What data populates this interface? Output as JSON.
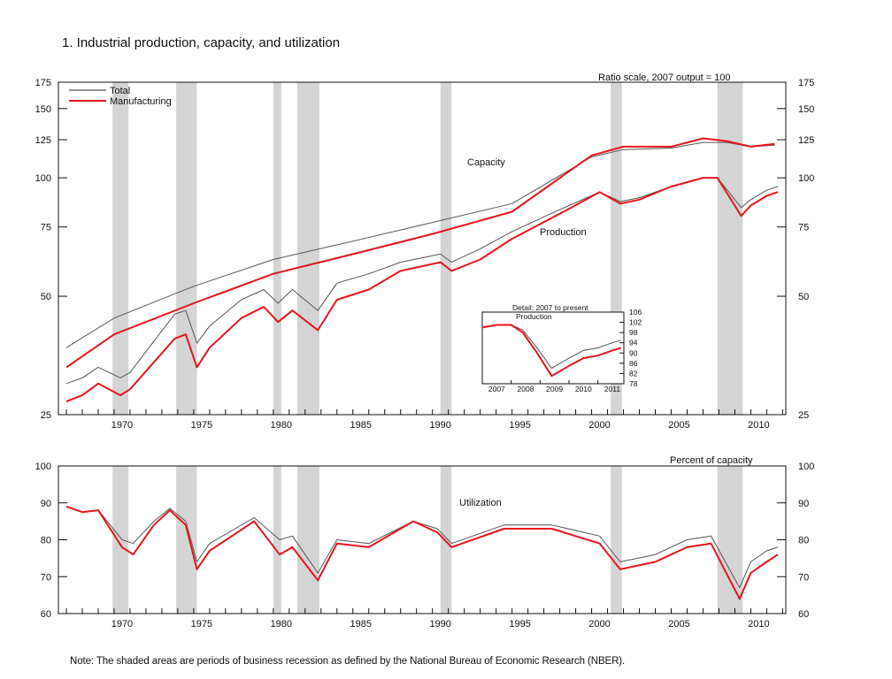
{
  "figure": {
    "title": "1.  Industrial production, capacity, and utilization",
    "note": "Note: The shaded areas are periods of business recession as defined by the National Bureau of Economic Research (NBER)."
  },
  "colors": {
    "total": "#555555",
    "manufacturing": "#e8141c",
    "recession": "#d4d4d4"
  },
  "chart_data": [
    {
      "type": "line",
      "subtitle": "Ratio scale, 2007 output = 100",
      "yscale": "log",
      "ylim": [
        25,
        175
      ],
      "xlim": [
        1966.5,
        2012.2
      ],
      "yticks": [
        25,
        50,
        75,
        100,
        125,
        150,
        175
      ],
      "xticks": [
        1970,
        1975,
        1980,
        1985,
        1990,
        1995,
        2000,
        2005,
        2010
      ],
      "recessions": [
        [
          1969.9,
          1970.9
        ],
        [
          1973.9,
          1975.2
        ],
        [
          1980.0,
          1980.5
        ],
        [
          1981.5,
          1982.9
        ],
        [
          1990.5,
          1991.2
        ],
        [
          2001.2,
          2001.9
        ],
        [
          2007.9,
          2009.5
        ]
      ],
      "legend": {
        "placement": "top-left",
        "entries": [
          "Total",
          "Manufacturing"
        ]
      },
      "annotations": [
        "Capacity",
        "Production"
      ],
      "series": [
        {
          "name": "Total",
          "measure": "Capacity",
          "x": [
            1967,
            1970,
            1975,
            1980,
            1985,
            1990,
            1995,
            2000,
            2002,
            2005,
            2007,
            2008.5,
            2010,
            2011.5
          ],
          "values": [
            37,
            44,
            53,
            62,
            69,
            77,
            86,
            113,
            118,
            119,
            123,
            123,
            120,
            121
          ]
        },
        {
          "name": "Manufacturing",
          "measure": "Capacity",
          "x": [
            1967,
            1970,
            1975,
            1980,
            1985,
            1990,
            1995,
            2000,
            2002,
            2005,
            2007,
            2008.5,
            2010,
            2011.5
          ],
          "values": [
            33,
            40,
            48,
            57,
            64,
            72,
            82,
            114,
            120,
            120,
            126,
            124,
            120,
            122
          ]
        },
        {
          "name": "Total",
          "measure": "Production",
          "x": [
            1967,
            1968,
            1969,
            1970.4,
            1971,
            1973.8,
            1974.5,
            1975.2,
            1976,
            1978,
            1979.4,
            1980.3,
            1981.2,
            1982.8,
            1984,
            1986,
            1988,
            1990.5,
            1991.2,
            1993,
            1995,
            1998,
            2000.5,
            2001.8,
            2003,
            2005,
            2007,
            2007.9,
            2009.4,
            2010,
            2011,
            2011.7
          ],
          "values": [
            30,
            31,
            33,
            31,
            32,
            45,
            46,
            38,
            42,
            49,
            52,
            48,
            52,
            46,
            54,
            57,
            61,
            64,
            61,
            66,
            73,
            83,
            92,
            87,
            89,
            95,
            100,
            100,
            84,
            88,
            93,
            95
          ]
        },
        {
          "name": "Manufacturing",
          "measure": "Production",
          "x": [
            1967,
            1968,
            1969,
            1970.4,
            1971,
            1973.8,
            1974.5,
            1975.2,
            1976,
            1978,
            1979.4,
            1980.3,
            1981.2,
            1982.8,
            1984,
            1986,
            1988,
            1990.5,
            1991.2,
            1993,
            1995,
            1998,
            2000.5,
            2001.8,
            2003,
            2005,
            2007,
            2007.9,
            2009.4,
            2010,
            2011,
            2011.7
          ],
          "values": [
            27,
            28,
            30,
            28,
            29,
            39,
            40,
            33,
            37,
            44,
            47,
            43,
            46,
            41,
            49,
            52,
            58,
            61,
            58,
            62,
            70,
            81,
            92,
            86,
            88,
            95,
            100,
            100,
            80,
            85,
            90,
            92
          ]
        }
      ],
      "inset": {
        "title": "Detail: 2007 to present",
        "annotation": "Production",
        "ylim": [
          78,
          106
        ],
        "yticks": [
          78,
          82,
          86,
          90,
          94,
          98,
          102,
          106
        ],
        "xticks": [
          "2007",
          "2008",
          "2009",
          "2010",
          "2011"
        ],
        "xlim": [
          2007,
          2011.9
        ],
        "series": [
          {
            "name": "Total",
            "x": [
              2007,
              2007.5,
              2008,
              2008.4,
              2008.9,
              2009.4,
              2010,
              2010.5,
              2011,
              2011.5,
              2011.8
            ],
            "values": [
              100,
              101,
              101,
              99,
              92,
              84,
              88,
              91,
              92,
              94,
              95
            ]
          },
          {
            "name": "Manufacturing",
            "x": [
              2007,
              2007.5,
              2008,
              2008.4,
              2008.9,
              2009.4,
              2010,
              2010.5,
              2011,
              2011.5,
              2011.8
            ],
            "values": [
              100,
              101,
              101,
              98,
              90,
              81,
              85,
              88,
              89,
              91,
              92
            ]
          }
        ]
      }
    },
    {
      "type": "line",
      "subtitle": "Percent of capacity",
      "ylim": [
        60,
        100
      ],
      "xlim": [
        1966.5,
        2012.2
      ],
      "yticks": [
        60,
        70,
        80,
        90,
        100
      ],
      "xticks": [
        1970,
        1975,
        1980,
        1985,
        1990,
        1995,
        2000,
        2005,
        2010
      ],
      "recessions": [
        [
          1969.9,
          1970.9
        ],
        [
          1973.9,
          1975.2
        ],
        [
          1980.0,
          1980.5
        ],
        [
          1981.5,
          1982.9
        ],
        [
          1990.5,
          1991.2
        ],
        [
          2001.2,
          2001.9
        ],
        [
          2007.9,
          2009.5
        ]
      ],
      "annotations": [
        "Utilization"
      ],
      "series": [
        {
          "name": "Total",
          "x": [
            1967,
            1968,
            1969,
            1970.5,
            1971.2,
            1972.5,
            1973.5,
            1974.5,
            1975.2,
            1976,
            1978.8,
            1980.4,
            1981.2,
            1982.8,
            1984,
            1986,
            1988.8,
            1990.3,
            1991.2,
            1994.5,
            1997.5,
            2000.5,
            2001.8,
            2004,
            2006,
            2007.5,
            2009.3,
            2010,
            2011,
            2011.7
          ],
          "values": [
            89,
            87.5,
            88,
            80,
            79,
            85,
            88.5,
            85,
            74,
            79,
            86,
            80,
            81,
            71,
            80,
            79,
            85,
            83,
            79,
            84,
            84,
            81,
            74,
            76,
            80,
            81,
            67,
            74,
            77,
            78
          ]
        },
        {
          "name": "Manufacturing",
          "x": [
            1967,
            1968,
            1969,
            1970.5,
            1971.2,
            1972.5,
            1973.5,
            1974.5,
            1975.2,
            1976,
            1978.8,
            1980.4,
            1981.2,
            1982.8,
            1984,
            1986,
            1988.8,
            1990.3,
            1991.2,
            1994.5,
            1997.5,
            2000.5,
            2001.8,
            2004,
            2006,
            2007.5,
            2009.3,
            2010,
            2011,
            2011.7
          ],
          "values": [
            89,
            87.5,
            88,
            78,
            76,
            84,
            88,
            84,
            72,
            77,
            85,
            76,
            78,
            69,
            79,
            78,
            85,
            82,
            78,
            83,
            83,
            79,
            72,
            74,
            78,
            79,
            64,
            71,
            74,
            76
          ]
        }
      ]
    }
  ]
}
